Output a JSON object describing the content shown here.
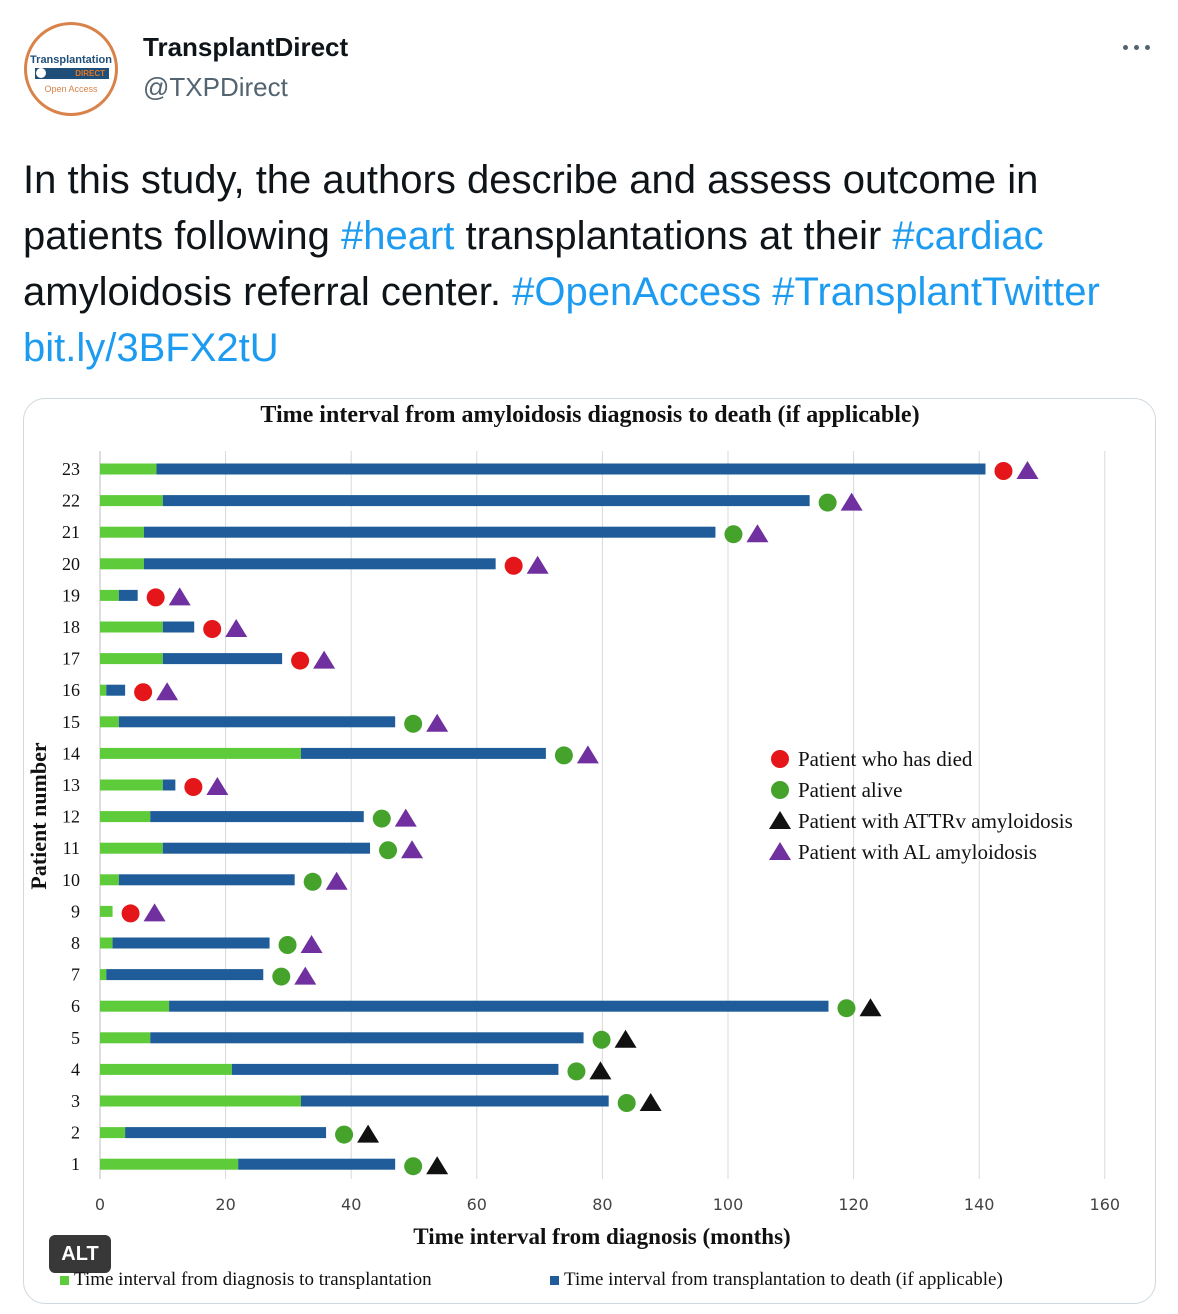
{
  "account": {
    "display_name": "TransplantDirect",
    "handle": "@TXPDirect",
    "avatar_text_top": "Transplantation",
    "avatar_text_mid": "DIRECT",
    "avatar_text_bottom": "Open Access"
  },
  "tweet": {
    "segments": [
      {
        "text": "In this study, the authors describe and assess outcome in patients following ",
        "link": false
      },
      {
        "text": "#heart",
        "link": true
      },
      {
        "text": " transplantations at their ",
        "link": false
      },
      {
        "text": "#cardiac",
        "link": true
      },
      {
        "text": " amyloidosis referral center. ",
        "link": false
      },
      {
        "text": "#OpenAccess",
        "link": true
      },
      {
        "text": " ",
        "link": false
      },
      {
        "text": "#TransplantTwitter",
        "link": true
      },
      {
        "text": " ",
        "link": false
      },
      {
        "text": "bit.ly/3BFX2tU",
        "link": true
      }
    ]
  },
  "media": {
    "alt_badge": "ALT"
  },
  "colors": {
    "link": "#1d9bf0",
    "bar_pre": "#5ecb3a",
    "bar_post": "#1f5c99",
    "died": "#e5161a",
    "alive": "#45a32c",
    "attrv": "#111111",
    "al": "#7030a0"
  },
  "chart_data": {
    "type": "bar",
    "orientation": "horizontal",
    "stacked": true,
    "title": "Time interval from amyloidosis diagnosis to death (if applicable)",
    "xlabel": "Time interval from diagnosis (months)",
    "ylabel": "Patient number",
    "xlim": [
      0,
      160
    ],
    "xticks": [
      0,
      20,
      40,
      60,
      80,
      100,
      120,
      140,
      160
    ],
    "grid": "vertical",
    "categories": [
      "1",
      "2",
      "3",
      "4",
      "5",
      "6",
      "7",
      "8",
      "9",
      "10",
      "11",
      "12",
      "13",
      "14",
      "15",
      "16",
      "17",
      "18",
      "19",
      "20",
      "21",
      "22",
      "23"
    ],
    "series": [
      {
        "name": "Time interval from diagnosis to transplantation",
        "values": [
          22,
          4,
          32,
          21,
          8,
          11,
          1,
          2,
          2,
          3,
          10,
          8,
          10,
          32,
          3,
          1,
          10,
          10,
          3,
          7,
          7,
          10,
          9
        ]
      },
      {
        "name": "Time interval from transplantation to death (if applicable)",
        "values": [
          25,
          32,
          49,
          52,
          69,
          105,
          25,
          25,
          0,
          28,
          33,
          34,
          2,
          39,
          44,
          3,
          19,
          5,
          3,
          56,
          91,
          103,
          132
        ]
      }
    ],
    "status": [
      "alive",
      "alive",
      "alive",
      "alive",
      "alive",
      "alive",
      "alive",
      "alive",
      "died",
      "alive",
      "alive",
      "alive",
      "died",
      "alive",
      "alive",
      "died",
      "died",
      "died",
      "died",
      "died",
      "alive",
      "alive",
      "died"
    ],
    "amyloidosis_type": [
      "ATTRv",
      "ATTRv",
      "ATTRv",
      "ATTRv",
      "ATTRv",
      "ATTRv",
      "AL",
      "AL",
      "AL",
      "AL",
      "AL",
      "AL",
      "AL",
      "AL",
      "AL",
      "AL",
      "AL",
      "AL",
      "AL",
      "AL",
      "AL",
      "AL",
      "AL"
    ],
    "marker_legend": [
      {
        "label": "Patient who has died",
        "shape": "circle",
        "color": "#e5161a"
      },
      {
        "label": "Patient alive",
        "shape": "circle",
        "color": "#45a32c"
      },
      {
        "label": "Patient with ATTRv amyloidosis",
        "shape": "triangle",
        "color": "#111111"
      },
      {
        "label": "Patient with AL amyloidosis",
        "shape": "triangle",
        "color": "#7030a0"
      }
    ],
    "marker_legend_position": "right",
    "bar_legend_position": "bottom"
  }
}
